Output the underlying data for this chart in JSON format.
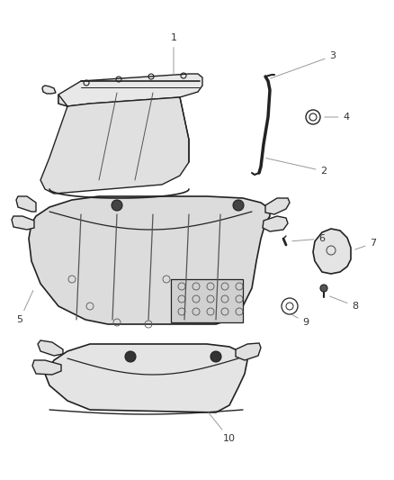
{
  "background_color": "#ffffff",
  "figure_width": 4.38,
  "figure_height": 5.33,
  "dpi": 100,
  "line_color_dark": "#222222",
  "line_color_mid": "#555555",
  "fill_color": "#f0f0f0",
  "label_fontsize": 8,
  "label_color": "#333333",
  "leader_color": "#999999"
}
